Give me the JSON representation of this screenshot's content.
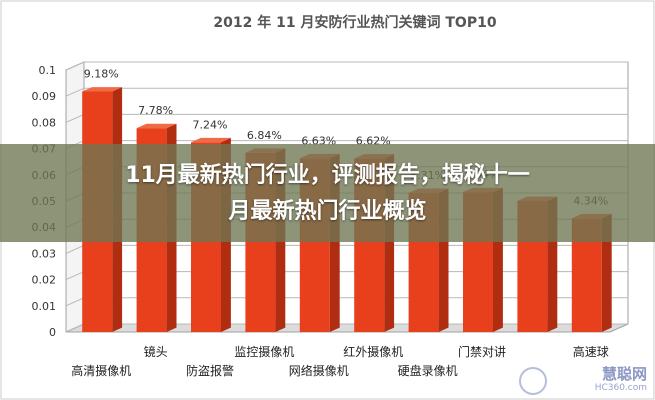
{
  "chart_data": {
    "type": "bar",
    "title": "2012 年 11 月安防行业热门关键词 TOP10",
    "categories": [
      "高清摄像机",
      "镜头",
      "防盗报警",
      "监控摄像机",
      "网络摄像机",
      "红外摄像机",
      "硬盘录像机",
      "门禁对讲",
      "",
      "高速球"
    ],
    "values": [
      0.0918,
      0.0778,
      0.0724,
      0.0684,
      0.0663,
      0.0662,
      0.0531,
      0.0534,
      0.05,
      0.0434
    ],
    "data_labels": [
      "9.18%",
      "7.78%",
      "7.24%",
      "6.84%",
      "6.63%",
      "6.62%",
      "5.31%",
      "5.34%",
      "",
      "4.34%"
    ],
    "y_ticks": [
      "0",
      "0.01",
      "0.02",
      "0.03",
      "0.04",
      "0.05",
      "0.06",
      "0.07",
      "0.08",
      "0.09",
      "0.1"
    ],
    "ylim": [
      0,
      0.1
    ],
    "grid": true,
    "colors": {
      "bar": "#e8401c",
      "bar_side": "#b02d12",
      "bar_top": "#f06a45",
      "wall": "#ffffff",
      "grid": "#b8b8b8"
    }
  },
  "overlay": {
    "line1": "11月最新热门行业，评测报告，揭秘十一",
    "line2": "月最新热门行业概览"
  },
  "watermark": {
    "brand": "慧聪网",
    "url": "HC360.com"
  }
}
